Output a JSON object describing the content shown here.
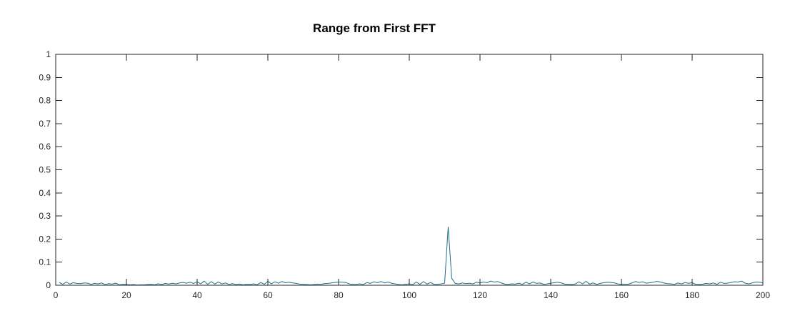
{
  "chart_data": {
    "type": "line",
    "title": "Range from First FFT",
    "xlabel": "",
    "ylabel": "",
    "xlim": [
      0,
      200
    ],
    "ylim": [
      0,
      1
    ],
    "grid": false,
    "x_ticks": [
      0,
      20,
      40,
      60,
      80,
      100,
      120,
      140,
      160,
      180,
      200
    ],
    "y_ticks": [
      0,
      0.1,
      0.2,
      0.3,
      0.4,
      0.5,
      0.6,
      0.7,
      0.8,
      0.9,
      1
    ],
    "x_tick_labels": [
      "0",
      "20",
      "40",
      "60",
      "80",
      "100",
      "120",
      "140",
      "160",
      "180",
      "200"
    ],
    "y_tick_labels": [
      "0",
      "0.1",
      "0.2",
      "0.3",
      "0.4",
      "0.5",
      "0.6",
      "0.7",
      "0.8",
      "0.9",
      "1"
    ],
    "series": [
      {
        "color": "#1f6f8b",
        "x": [
          1,
          2,
          3,
          4,
          5,
          6,
          7,
          8,
          9,
          10,
          11,
          12,
          13,
          14,
          15,
          16,
          17,
          18,
          19,
          20,
          21,
          22,
          23,
          24,
          25,
          26,
          27,
          28,
          29,
          30,
          31,
          32,
          33,
          34,
          35,
          36,
          37,
          38,
          39,
          40,
          41,
          42,
          43,
          44,
          45,
          46,
          47,
          48,
          49,
          50,
          51,
          52,
          53,
          54,
          55,
          56,
          57,
          58,
          59,
          60,
          61,
          62,
          63,
          64,
          65,
          66,
          67,
          68,
          69,
          70,
          71,
          72,
          73,
          74,
          75,
          76,
          77,
          78,
          79,
          80,
          81,
          82,
          83,
          84,
          85,
          86,
          87,
          88,
          89,
          90,
          91,
          92,
          93,
          94,
          95,
          96,
          97,
          98,
          99,
          100,
          101,
          102,
          103,
          104,
          105,
          106,
          107,
          108,
          109,
          110,
          111,
          112,
          113,
          114,
          115,
          116,
          117,
          118,
          119,
          120,
          121,
          122,
          123,
          124,
          125,
          126,
          127,
          128,
          129,
          130,
          131,
          132,
          133,
          134,
          135,
          136,
          137,
          138,
          139,
          140,
          141,
          142,
          143,
          144,
          145,
          146,
          147,
          148,
          149,
          150,
          151,
          152,
          153,
          154,
          155,
          156,
          157,
          158,
          159,
          160,
          161,
          162,
          163,
          164,
          165,
          166,
          167,
          168,
          169,
          170,
          171,
          172,
          173,
          174,
          175,
          176,
          177,
          178,
          179,
          180,
          181,
          182,
          183,
          184,
          185,
          186,
          187,
          188,
          189,
          190,
          191,
          192,
          193,
          194,
          195,
          196,
          197,
          198,
          199,
          200
        ],
        "y": [
          0.012,
          0.004,
          0.014,
          0.005,
          0.011,
          0.008,
          0.007,
          0.01,
          0.009,
          0.004,
          0.008,
          0.006,
          0.01,
          0.003,
          0.007,
          0.005,
          0.009,
          0.002,
          0.004,
          0.003,
          0.002,
          0.003,
          0.001,
          0.002,
          0.002,
          0.003,
          0.004,
          0.002,
          0.006,
          0.003,
          0.008,
          0.005,
          0.009,
          0.006,
          0.01,
          0.012,
          0.009,
          0.013,
          0.008,
          0.015,
          0.006,
          0.018,
          0.004,
          0.016,
          0.005,
          0.014,
          0.006,
          0.01,
          0.004,
          0.007,
          0.003,
          0.005,
          0.002,
          0.004,
          0.003,
          0.006,
          0.002,
          0.012,
          0.004,
          0.017,
          0.006,
          0.015,
          0.009,
          0.016,
          0.011,
          0.013,
          0.01,
          0.008,
          0.005,
          0.004,
          0.003,
          0.002,
          0.003,
          0.005,
          0.004,
          0.007,
          0.008,
          0.01,
          0.012,
          0.014,
          0.013,
          0.012,
          0.006,
          0.003,
          0.004,
          0.006,
          0.003,
          0.012,
          0.008,
          0.015,
          0.011,
          0.016,
          0.01,
          0.014,
          0.009,
          0.006,
          0.003,
          0.002,
          0.004,
          0.006,
          0.003,
          0.014,
          0.004,
          0.016,
          0.005,
          0.012,
          0.004,
          0.004,
          0.006,
          0.009,
          0.253,
          0.03,
          0.008,
          0.006,
          0.01,
          0.007,
          0.009,
          0.006,
          0.013,
          0.01,
          0.014,
          0.011,
          0.018,
          0.014,
          0.016,
          0.01,
          0.005,
          0.003,
          0.006,
          0.005,
          0.009,
          0.004,
          0.013,
          0.006,
          0.014,
          0.008,
          0.01,
          0.004,
          0.006,
          0.009,
          0.011,
          0.013,
          0.01,
          0.005,
          0.004,
          0.003,
          0.006,
          0.015,
          0.006,
          0.017,
          0.005,
          0.01,
          0.004,
          0.008,
          0.011,
          0.013,
          0.012,
          0.01,
          0.006,
          0.003,
          0.004,
          0.005,
          0.01,
          0.016,
          0.012,
          0.015,
          0.009,
          0.011,
          0.013,
          0.017,
          0.014,
          0.01,
          0.007,
          0.006,
          0.004,
          0.01,
          0.006,
          0.012,
          0.008,
          0.011,
          0.004,
          0.003,
          0.005,
          0.008,
          0.006,
          0.01,
          0.004,
          0.013,
          0.008,
          0.009,
          0.012,
          0.015,
          0.014,
          0.018,
          0.009,
          0.006,
          0.01,
          0.014,
          0.013,
          0.011
        ]
      }
    ]
  }
}
